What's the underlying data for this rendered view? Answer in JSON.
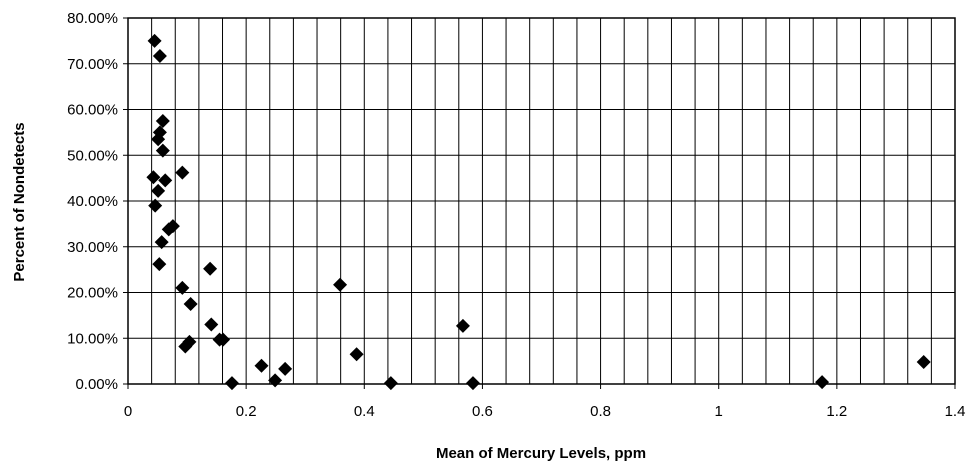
{
  "chart_data": {
    "type": "scatter",
    "title": "",
    "xlabel": "Mean of Mercury Levels, ppm",
    "ylabel": "Percent of Nondetects",
    "xlim": [
      0,
      1.4
    ],
    "ylim": [
      0,
      0.8
    ],
    "x_ticks": [
      {
        "value": 0,
        "label": "0"
      },
      {
        "value": 0.2,
        "label": "0.2"
      },
      {
        "value": 0.4,
        "label": "0.4"
      },
      {
        "value": 0.6,
        "label": "0.6"
      },
      {
        "value": 0.8,
        "label": "0.8"
      },
      {
        "value": 1.0,
        "label": "1"
      },
      {
        "value": 1.2,
        "label": "1.2"
      },
      {
        "value": 1.4,
        "label": "1.4"
      }
    ],
    "y_ticks": [
      {
        "value": 0,
        "label": "0.00%"
      },
      {
        "value": 0.1,
        "label": "10.00%"
      },
      {
        "value": 0.2,
        "label": "20.00%"
      },
      {
        "value": 0.3,
        "label": "30.00%"
      },
      {
        "value": 0.4,
        "label": "40.00%"
      },
      {
        "value": 0.5,
        "label": "50.00%"
      },
      {
        "value": 0.6,
        "label": "60.00%"
      },
      {
        "value": 0.7,
        "label": "70.00%"
      },
      {
        "value": 0.8,
        "label": "80.00%"
      }
    ],
    "x_minor_step": 0.04,
    "grid": true,
    "legend": "none",
    "marker": "diamond",
    "marker_color": "#000000",
    "grid_color": "#000000",
    "series": [
      {
        "points": [
          {
            "x": 0.045,
            "y": 0.75
          },
          {
            "x": 0.054,
            "y": 0.717
          },
          {
            "x": 0.059,
            "y": 0.575
          },
          {
            "x": 0.054,
            "y": 0.55
          },
          {
            "x": 0.051,
            "y": 0.535
          },
          {
            "x": 0.059,
            "y": 0.51
          },
          {
            "x": 0.043,
            "y": 0.452
          },
          {
            "x": 0.063,
            "y": 0.445
          },
          {
            "x": 0.092,
            "y": 0.462
          },
          {
            "x": 0.051,
            "y": 0.422
          },
          {
            "x": 0.046,
            "y": 0.39
          },
          {
            "x": 0.076,
            "y": 0.345
          },
          {
            "x": 0.069,
            "y": 0.338
          },
          {
            "x": 0.057,
            "y": 0.31
          },
          {
            "x": 0.053,
            "y": 0.262
          },
          {
            "x": 0.139,
            "y": 0.252
          },
          {
            "x": 0.092,
            "y": 0.21
          },
          {
            "x": 0.106,
            "y": 0.175
          },
          {
            "x": 0.141,
            "y": 0.13
          },
          {
            "x": 0.155,
            "y": 0.097
          },
          {
            "x": 0.161,
            "y": 0.097
          },
          {
            "x": 0.104,
            "y": 0.092
          },
          {
            "x": 0.097,
            "y": 0.082
          },
          {
            "x": 0.176,
            "y": 0.002
          },
          {
            "x": 0.226,
            "y": 0.04
          },
          {
            "x": 0.249,
            "y": 0.008
          },
          {
            "x": 0.266,
            "y": 0.033
          },
          {
            "x": 0.359,
            "y": 0.217
          },
          {
            "x": 0.387,
            "y": 0.065
          },
          {
            "x": 0.445,
            "y": 0.002
          },
          {
            "x": 0.567,
            "y": 0.127
          },
          {
            "x": 0.584,
            "y": 0.002
          },
          {
            "x": 1.175,
            "y": 0.004
          },
          {
            "x": 1.347,
            "y": 0.048
          }
        ]
      }
    ]
  }
}
